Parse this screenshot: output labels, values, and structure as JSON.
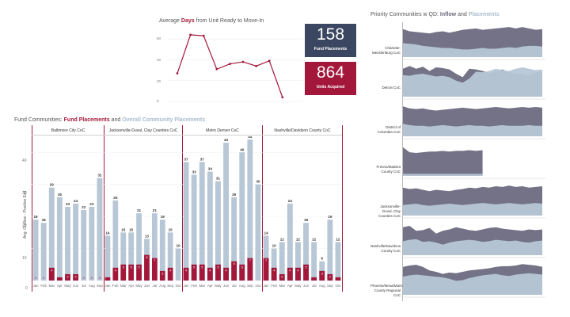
{
  "top": {
    "title_pre": "Average ",
    "title_em": "Days",
    "title_post": " from Unit Ready to Move-In",
    "y_ticks": [
      "60",
      "40",
      "20",
      "0"
    ],
    "series": [
      27,
      64,
      63,
      31,
      36,
      38,
      34,
      39,
      4
    ],
    "ylim": [
      0,
      70
    ],
    "line_color": "#a3183a"
  },
  "kpis": {
    "fund_placements_value": "158",
    "fund_placements_label": "Fund Placements",
    "units_acquired_value": "864",
    "units_acquired_label": "Units Acquired",
    "navy": "#3b4660",
    "red": "#a3183a"
  },
  "fund": {
    "title_pre": "Fund Communities: ",
    "title_fund": "Fund Placements",
    "title_mid": " and ",
    "title_overall": "Overall Community Placements",
    "y_axis_label": "Avg. Outflow - Positive Exit",
    "y_ticks": [
      "40",
      "30",
      "20",
      "10",
      "0"
    ],
    "ylim": [
      0,
      46
    ],
    "colors": {
      "overall": "#b7c7d6",
      "fund": "#a3183a"
    }
  },
  "chart_data": {
    "type": "bar",
    "panels": [
      {
        "name": "Baltimore City CoC",
        "categories": [
          "Jan",
          "Feb",
          "Mar",
          "Apr",
          "May",
          "Jun",
          "Jul",
          "Aug",
          "Sep"
        ],
        "series": [
          {
            "name": "Overall Community Placements",
            "values": [
              19,
              18,
              29,
              26,
              23,
              24,
              22,
              23,
              32
            ]
          },
          {
            "name": "Fund Placements",
            "values": [
              0,
              0,
              4,
              1,
              2,
              2,
              0,
              0,
              0
            ]
          }
        ]
      },
      {
        "name": "Jacksonville-Duval, Clay Counties CoC",
        "categories": [
          "Jan",
          "Feb",
          "Mar",
          "Apr",
          "May",
          "Jun",
          "Jul",
          "Aug",
          "Sep",
          "Oct"
        ],
        "series": [
          {
            "name": "Overall Community Placements",
            "values": [
              14,
              25,
              15,
              15,
              21,
              13,
              21,
              19,
              15,
              10
            ]
          },
          {
            "name": "Fund Placements",
            "values": [
              1,
              4,
              5,
              5,
              5,
              8,
              7,
              3,
              4,
              null
            ]
          }
        ]
      },
      {
        "name": "Metro Denver CoC",
        "categories": [
          "Jan",
          "Feb",
          "Mar",
          "Apr",
          "May",
          "Jun",
          "Jul",
          "Aug",
          "Sep",
          "Oct"
        ],
        "series": [
          {
            "name": "Overall Community Placements",
            "values": [
              37,
              33,
              37,
              34,
              31,
              43,
              26,
              40,
              44,
              30
            ]
          },
          {
            "name": "Fund Placements",
            "values": [
              4,
              5,
              5,
              4,
              5,
              4,
              6,
              5,
              7,
              null
            ]
          }
        ]
      },
      {
        "name": "Nashville/Davidson County CoC",
        "categories": [
          "Jan",
          "Feb",
          "Mar",
          "Apr",
          "May",
          "Jun",
          "Jul",
          "Aug",
          "Sep",
          "Oct"
        ],
        "series": [
          {
            "name": "Overall Community Placements",
            "values": [
              14,
              10,
              12,
              24,
              12,
              18,
              12,
              6,
              19,
              12
            ]
          },
          {
            "name": "Fund Placements",
            "values": [
              7,
              4,
              2,
              4,
              4,
              5,
              1,
              3,
              2,
              1
            ]
          }
        ]
      }
    ]
  },
  "priority": {
    "title_pre": "Priority Communities w QD: ",
    "title_inflow": "Inflow",
    "title_mid": " and ",
    "title_placements": "Placements",
    "colors": {
      "inflow": "#6b6a80",
      "placements": "#b7c7d6"
    },
    "rows": [
      {
        "label": "Charlotte-Mecklenburg CoC",
        "inflow": [
          0.8,
          0.74,
          0.72,
          0.7,
          0.68,
          0.72,
          0.74,
          0.7,
          0.74,
          0.78,
          0.8,
          0.82,
          0.78,
          0.8,
          0.82,
          0.84,
          0.86,
          0.82,
          0.86,
          0.82,
          0.78,
          0.8
        ],
        "placements": [
          0.4,
          0.38,
          0.36,
          0.32,
          0.3,
          0.28,
          0.26,
          0.26,
          0.24,
          0.22,
          0.22,
          0.24,
          0.26,
          0.24,
          0.24,
          0.26,
          0.28,
          0.26,
          0.3,
          0.32,
          0.32,
          0.3
        ]
      },
      {
        "label": "Detroit CoC",
        "inflow": [
          0.8,
          0.88,
          0.8,
          0.86,
          0.74,
          0.84,
          0.82,
          0.78,
          0.66,
          0.56,
          0.8,
          0.78,
          0.74,
          0.68,
          0.74,
          0.78,
          0.7,
          0.66,
          0.64,
          0.6,
          0.7,
          0.72
        ],
        "placements": [
          0.62,
          0.6,
          0.64,
          0.66,
          0.62,
          0.58,
          0.6,
          0.56,
          0.46,
          0.4,
          0.52,
          0.72,
          0.7,
          0.74,
          0.8,
          0.76,
          0.74,
          0.8,
          0.84,
          0.8,
          0.76,
          0.78
        ]
      },
      {
        "label": "District of Columbia CoC",
        "inflow": [
          0.86,
          0.8,
          0.78,
          0.8,
          0.76,
          0.74,
          0.76,
          0.78,
          0.8,
          0.82,
          0.8,
          0.78,
          0.8,
          0.82,
          0.84,
          0.82,
          0.8,
          0.82,
          0.84,
          0.82,
          0.84,
          0.82
        ],
        "placements": [
          0.36,
          0.32,
          0.3,
          0.3,
          0.28,
          0.3,
          0.32,
          0.3,
          0.28,
          0.3,
          0.32,
          0.3,
          0.3,
          0.28,
          0.3,
          0.32,
          0.3,
          0.3,
          0.3,
          0.32,
          0.3,
          0.3
        ]
      },
      {
        "label": "Fresno/Madera County CoC",
        "inflow": [
          0.82,
          0.68,
          0.66,
          0.68,
          0.7,
          0.7,
          0.72,
          0.7,
          0.72,
          0.72,
          0.74,
          0.72,
          0.74,
          null,
          null,
          null,
          null,
          null,
          null,
          null,
          null,
          null
        ],
        "placements": [
          0.06,
          0.06,
          0.06,
          0.06,
          0.06,
          0.06,
          0.06,
          0.06,
          0.06,
          0.06,
          0.06,
          0.06,
          0.06,
          null,
          null,
          null,
          null,
          null,
          null,
          null,
          null,
          null
        ]
      },
      {
        "label": "Jacksonville-Duval, Clay Counties CoC",
        "inflow": [
          0.8,
          0.76,
          0.78,
          0.74,
          0.7,
          0.74,
          0.72,
          0.7,
          0.74,
          0.76,
          0.8,
          0.78,
          0.82,
          0.8,
          0.84,
          0.82,
          0.86,
          0.82,
          0.84,
          0.8,
          0.82,
          0.84
        ],
        "placements": [
          0.3,
          0.32,
          0.34,
          0.3,
          0.28,
          0.3,
          0.32,
          0.34,
          0.32,
          0.3,
          0.32,
          0.34,
          0.36,
          0.34,
          0.32,
          0.34,
          0.36,
          0.34,
          0.32,
          0.34,
          0.36,
          0.34
        ]
      },
      {
        "label": "Nashville/Davidson County CoC",
        "inflow": [
          0.8,
          0.84,
          0.7,
          0.72,
          0.78,
          0.62,
          0.7,
          0.74,
          0.8,
          0.76,
          0.72,
          0.7,
          0.74,
          0.78,
          0.8,
          0.76,
          0.74,
          0.72,
          0.7,
          0.74,
          0.72,
          0.74
        ],
        "placements": [
          0.4,
          0.44,
          0.46,
          0.38,
          0.4,
          0.36,
          0.3,
          0.36,
          0.4,
          0.42,
          0.44,
          0.42,
          0.38,
          0.4,
          0.44,
          0.42,
          0.4,
          0.42,
          0.38,
          0.36,
          0.4,
          0.42
        ]
      },
      {
        "label": "Phoenix/Mesa/Maricopa County Regional CoC",
        "inflow": [
          0.8,
          0.84,
          0.86,
          0.8,
          0.7,
          0.66,
          0.6,
          0.64,
          0.62,
          0.66,
          0.7,
          0.72,
          0.74,
          0.76,
          0.8,
          0.82,
          0.82,
          0.84,
          0.88,
          0.86,
          0.84,
          0.8
        ],
        "placements": [
          0.52,
          0.56,
          0.58,
          0.56,
          0.54,
          0.52,
          0.5,
          0.46,
          0.4,
          0.42,
          0.48,
          0.52,
          0.56,
          0.58,
          0.6,
          0.56,
          0.54,
          0.58,
          0.6,
          0.62,
          0.6,
          0.58
        ]
      }
    ]
  }
}
